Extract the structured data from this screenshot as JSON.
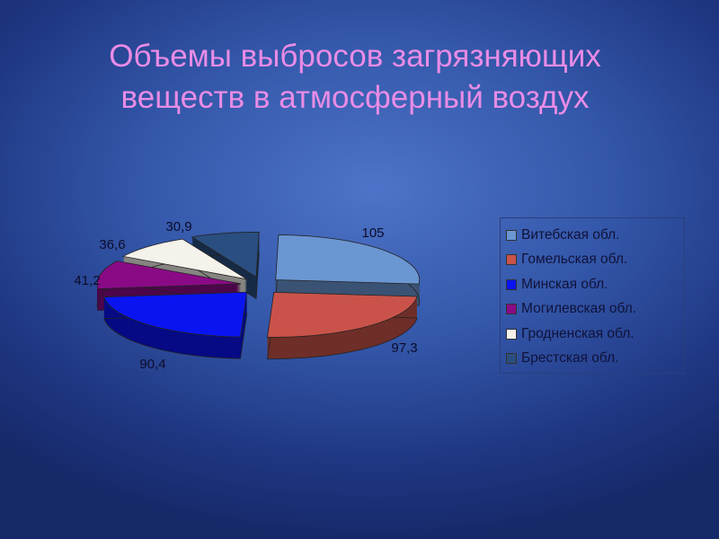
{
  "title_line1": "Объемы выбросов загрязняющих",
  "title_line2": "веществ в атмосферный воздух",
  "chart_data": {
    "type": "pie",
    "style": "3d-exploded",
    "categories": [
      "Витебская обл.",
      "Гомельская обл.",
      "Минская обл.",
      "Могилевская обл.",
      "Гродненская обл.",
      "Брестская обл."
    ],
    "values": [
      105,
      97.3,
      90.4,
      41.2,
      36.6,
      30.9
    ],
    "data_labels": [
      "105",
      "97,3",
      "90,4",
      "41,2",
      "36,6",
      "30,9"
    ],
    "colors": [
      "#6a96d2",
      "#c9534a",
      "#0a14f0",
      "#8a0a86",
      "#f4f2ea",
      "#2a4e80"
    ],
    "legend_position": "right"
  }
}
